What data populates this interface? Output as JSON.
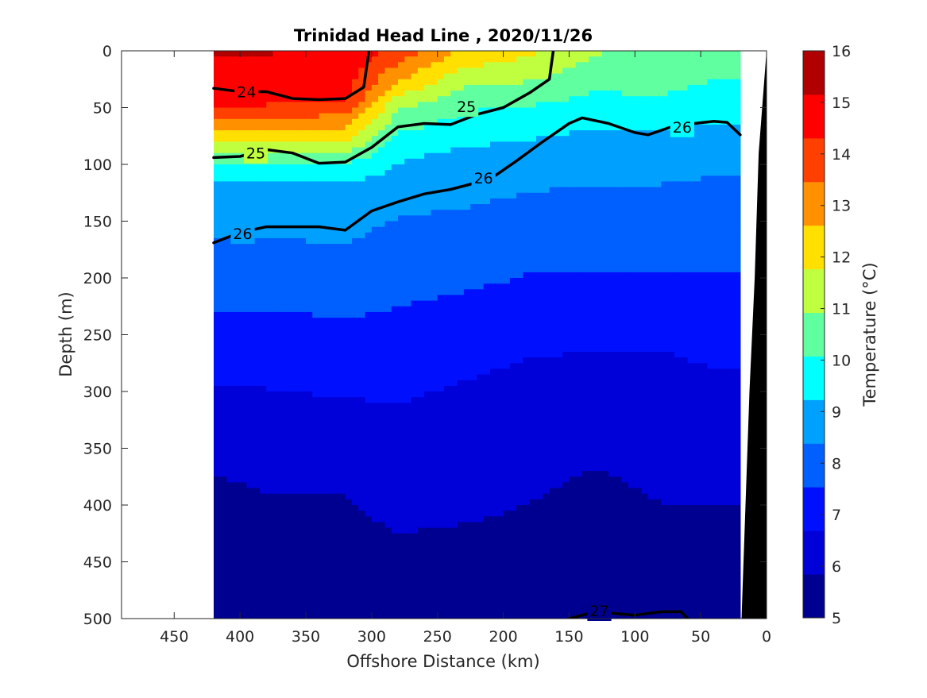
{
  "chart_data": {
    "type": "heatmap",
    "title": "Trinidad Head Line , 2020/11/26",
    "xlabel": "Offshore Distance (km)",
    "ylabel": "Depth (m)",
    "colorbar_label": "Temperature (°C)",
    "xlim": [
      490,
      0
    ],
    "ylim": [
      500,
      0
    ],
    "x_reversed": true,
    "y_reversed": true,
    "x_ticks": [
      "450",
      "400",
      "350",
      "300",
      "250",
      "200",
      "150",
      "100",
      "50",
      "0"
    ],
    "y_ticks": [
      "0",
      "50",
      "100",
      "150",
      "200",
      "250",
      "300",
      "350",
      "400",
      "450",
      "500"
    ],
    "colorbar_ticks": [
      "5",
      "6",
      "7",
      "8",
      "9",
      "10",
      "11",
      "12",
      "13",
      "14",
      "15",
      "16"
    ],
    "colorbar_range": [
      5,
      16
    ],
    "colormap": [
      "#000090",
      "#0000D9",
      "#0010FF",
      "#0060FF",
      "#00A0FF",
      "#00FFFF",
      "#60FFA0",
      "#C0FF40",
      "#FFE000",
      "#FF9000",
      "#FF4000",
      "#FF0000",
      "#B00000"
    ],
    "data_extent_km": [
      420,
      20
    ],
    "temperature_profiles": [
      {
        "x": 420,
        "depths": [
          0,
          40,
          60,
          80,
          100,
          120,
          140,
          170,
          200,
          240,
          280,
          330,
          380,
          450,
          500
        ],
        "temps": [
          15.2,
          14.8,
          13.5,
          12.0,
          10.0,
          9.0,
          8.7,
          8.3,
          7.9,
          7.4,
          6.9,
          6.3,
          5.8,
          5.3,
          5.1
        ]
      },
      {
        "x": 380,
        "depths": [
          0,
          40,
          60,
          80,
          100,
          120,
          140,
          170,
          200,
          240,
          280,
          330,
          380,
          450,
          500
        ],
        "temps": [
          15.2,
          14.8,
          13.5,
          12.0,
          10.0,
          9.0,
          8.7,
          8.3,
          7.9,
          7.4,
          6.9,
          6.3,
          5.9,
          5.5,
          5.3
        ]
      },
      {
        "x": 320,
        "depths": [
          0,
          40,
          60,
          80,
          100,
          120,
          140,
          170,
          200,
          240,
          280,
          330,
          380,
          450,
          500
        ],
        "temps": [
          15.0,
          14.5,
          13.2,
          11.8,
          10.0,
          9.1,
          8.8,
          8.4,
          7.9,
          7.5,
          7.0,
          6.4,
          5.9,
          5.6,
          5.4
        ]
      },
      {
        "x": 280,
        "depths": [
          0,
          30,
          50,
          70,
          90,
          110,
          130,
          160,
          200,
          240,
          280,
          330,
          380,
          450,
          500
        ],
        "temps": [
          14.0,
          12.5,
          11.0,
          10.2,
          9.4,
          9.0,
          8.6,
          8.2,
          7.8,
          7.4,
          7.0,
          6.5,
          6.1,
          5.7,
          5.4
        ]
      },
      {
        "x": 230,
        "depths": [
          0,
          30,
          50,
          70,
          90,
          110,
          130,
          160,
          200,
          240,
          280,
          330,
          380,
          450,
          500
        ],
        "temps": [
          12.5,
          11.0,
          10.2,
          9.6,
          9.1,
          8.8,
          8.5,
          8.1,
          7.7,
          7.2,
          6.8,
          6.3,
          6.0,
          5.7,
          5.5
        ]
      },
      {
        "x": 180,
        "depths": [
          0,
          30,
          50,
          70,
          90,
          110,
          130,
          160,
          200,
          240,
          280,
          330,
          380,
          450,
          500
        ],
        "temps": [
          12.0,
          10.8,
          10.0,
          9.4,
          9.0,
          8.6,
          8.3,
          7.9,
          7.5,
          7.0,
          6.6,
          6.1,
          5.9,
          5.7,
          5.5
        ]
      },
      {
        "x": 130,
        "depths": [
          0,
          30,
          50,
          70,
          90,
          110,
          130,
          160,
          200,
          240,
          280,
          330,
          380,
          450,
          500
        ],
        "temps": [
          11.0,
          10.2,
          9.8,
          9.2,
          8.8,
          8.5,
          8.2,
          7.9,
          7.5,
          7.0,
          6.5,
          6.0,
          5.8,
          5.6,
          5.5
        ]
      },
      {
        "x": 80,
        "depths": [
          0,
          30,
          50,
          70,
          90,
          110,
          130,
          160,
          200,
          240,
          280,
          330,
          380,
          450,
          500
        ],
        "temps": [
          10.8,
          10.3,
          9.8,
          9.2,
          8.8,
          8.5,
          8.2,
          7.9,
          7.5,
          7.0,
          6.5,
          6.1,
          5.9,
          5.7,
          5.5
        ]
      },
      {
        "x": 40,
        "depths": [
          0,
          30,
          50,
          70,
          90,
          110,
          130,
          160,
          200,
          240,
          280,
          330,
          380,
          450,
          500
        ],
        "temps": [
          10.5,
          10.0,
          9.6,
          9.1,
          8.7,
          8.4,
          8.1,
          7.8,
          7.5,
          7.1,
          6.7,
          6.2,
          5.9,
          5.7,
          5.5
        ]
      }
    ],
    "density_contours": [
      {
        "label": "24",
        "points": [
          [
            420,
            33
          ],
          [
            400,
            36
          ],
          [
            380,
            36
          ],
          [
            360,
            42
          ],
          [
            340,
            43
          ],
          [
            320,
            42
          ],
          [
            306,
            32
          ],
          [
            302,
            0
          ]
        ]
      },
      {
        "label": "25",
        "points": [
          [
            420,
            94
          ],
          [
            400,
            93
          ],
          [
            380,
            87
          ],
          [
            360,
            90
          ],
          [
            340,
            99
          ],
          [
            320,
            98
          ],
          [
            300,
            85
          ],
          [
            280,
            67
          ],
          [
            260,
            64
          ],
          [
            240,
            65
          ],
          [
            220,
            56
          ],
          [
            200,
            50
          ],
          [
            180,
            37
          ],
          [
            165,
            25
          ],
          [
            162,
            0
          ]
        ]
      },
      {
        "label": "26",
        "points": [
          [
            420,
            169
          ],
          [
            400,
            160
          ],
          [
            380,
            155
          ],
          [
            340,
            155
          ],
          [
            320,
            158
          ],
          [
            300,
            141
          ],
          [
            280,
            133
          ],
          [
            260,
            126
          ],
          [
            240,
            122
          ],
          [
            210,
            113
          ],
          [
            190,
            97
          ],
          [
            170,
            80
          ],
          [
            150,
            64
          ],
          [
            140,
            59
          ],
          [
            120,
            64
          ],
          [
            100,
            72
          ],
          [
            90,
            74
          ],
          [
            70,
            66
          ],
          [
            40,
            62
          ],
          [
            30,
            63
          ],
          [
            20,
            74
          ]
        ]
      },
      {
        "label": "27",
        "points": [
          [
            150,
            500
          ],
          [
            130,
            494
          ],
          [
            100,
            497
          ],
          [
            80,
            494
          ],
          [
            65,
            494
          ],
          [
            60,
            500
          ]
        ]
      }
    ],
    "contour_label_positions": [
      {
        "label": "24",
        "x": 395,
        "y": 36
      },
      {
        "label": "25",
        "x": 228,
        "y": 49
      },
      {
        "label": "25",
        "x": 388,
        "y": 90
      },
      {
        "label": "26",
        "x": 64,
        "y": 67
      },
      {
        "label": "26",
        "x": 215,
        "y": 112
      },
      {
        "label": "26",
        "x": 398,
        "y": 161
      },
      {
        "label": "27",
        "x": 127,
        "y": 493
      }
    ],
    "bathymetry": [
      [
        0,
        0
      ],
      [
        6,
        90
      ],
      [
        9,
        200
      ],
      [
        13,
        300
      ],
      [
        16,
        400
      ],
      [
        19,
        500
      ]
    ],
    "grid": false,
    "legend": "colorbar-right"
  }
}
